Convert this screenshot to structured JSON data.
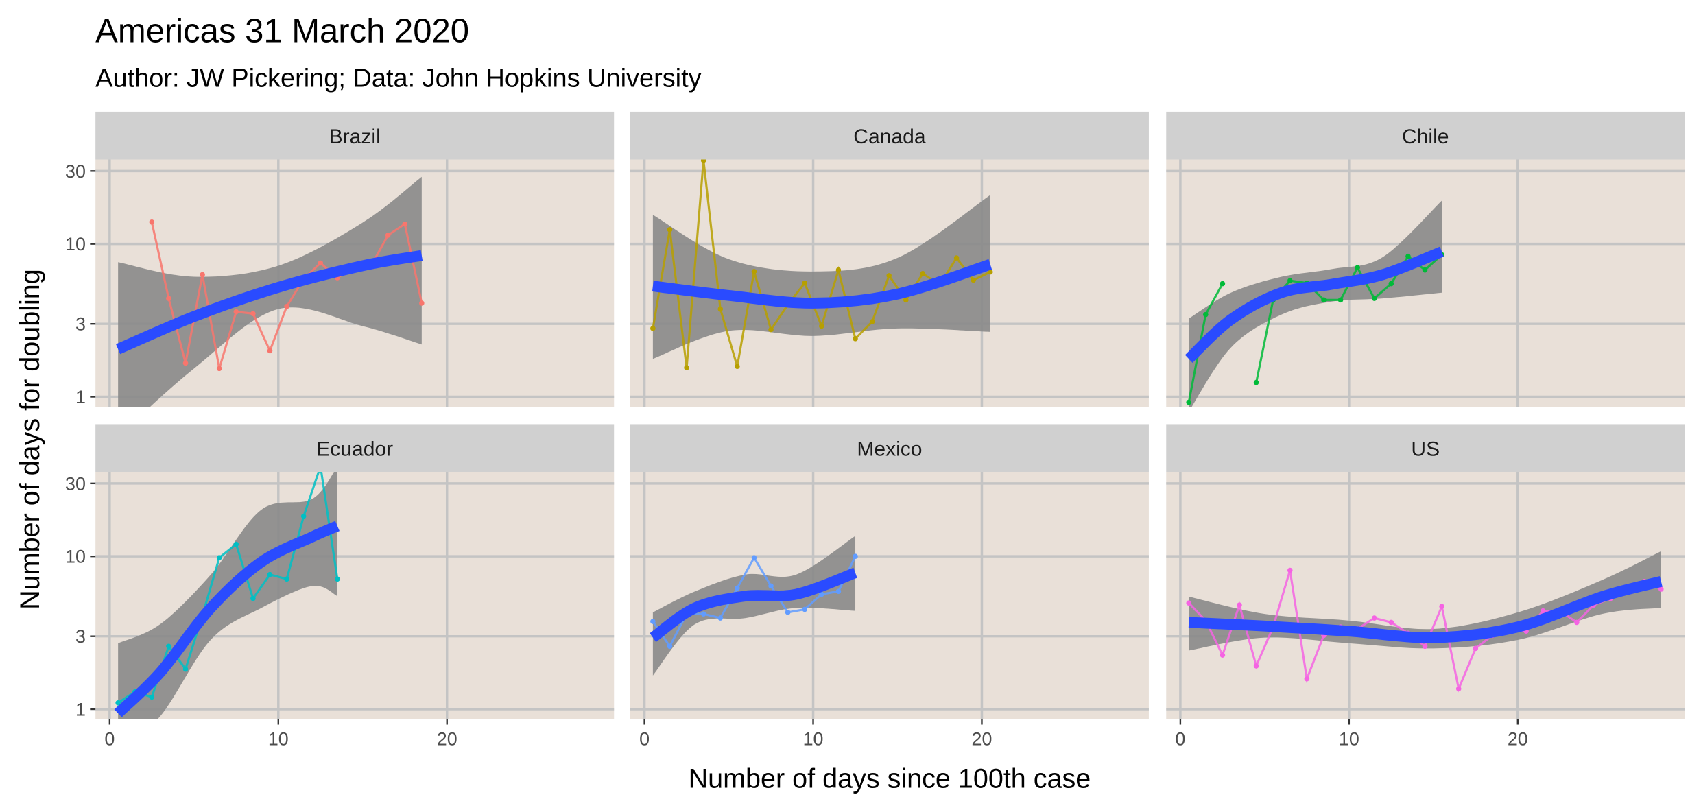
{
  "title": "Americas 31 March 2020",
  "subtitle": "Author: JW Pickering; Data: John Hopkins University",
  "x_label": "Number of days since 100th case",
  "y_label": "Number of days for doubling",
  "chart_data": [
    {
      "type": "line",
      "title": "Brazil",
      "color": "#F8766D",
      "log_y": true,
      "grid": true,
      "xlim": [
        -0.84,
        29.9
      ],
      "ylim": [
        0.86,
        35.7
      ],
      "xticks": [
        0,
        10,
        20
      ],
      "yticks": [
        1,
        3,
        10,
        30
      ],
      "x": [
        2.5,
        3.5,
        4.5,
        5.5,
        6.5,
        7.5,
        8.5,
        9.5,
        10.5,
        11.5,
        12.5,
        13.5,
        14.5,
        15.5,
        16.5,
        17.5,
        18.5
      ],
      "values": [
        13.9,
        4.4,
        1.66,
        6.3,
        1.53,
        3.6,
        3.5,
        2.0,
        3.9,
        5.9,
        7.5,
        6.0,
        7.1,
        7.2,
        11.4,
        13.5,
        4.1
      ],
      "smooth": {
        "color": "#2A4BFF",
        "x": [
          0.5,
          5,
          10,
          15,
          18.5
        ],
        "values": [
          2.05,
          3.35,
          5.2,
          7.2,
          8.4
        ],
        "lower": [
          0.55,
          1.53,
          3.75,
          2.9,
          2.2
        ],
        "upper": [
          7.6,
          6.1,
          7.2,
          13.8,
          27.5
        ]
      }
    },
    {
      "type": "line",
      "title": "Canada",
      "color": "#B79F00",
      "log_y": true,
      "grid": true,
      "xlim": [
        -0.84,
        29.9
      ],
      "ylim": [
        0.86,
        35.7
      ],
      "xticks": [
        0,
        10,
        20
      ],
      "yticks": [
        1,
        3,
        10,
        30
      ],
      "x": [
        0.5,
        1.5,
        2.5,
        3.5,
        4.5,
        5.5,
        6.5,
        7.5,
        8.5,
        9.5,
        10.5,
        11.5,
        12.5,
        13.5,
        14.5,
        15.5,
        16.5,
        17.5,
        18.5,
        19.5,
        20.5
      ],
      "values": [
        2.8,
        12.4,
        1.55,
        35.2,
        3.75,
        1.58,
        6.6,
        2.75,
        4.0,
        5.55,
        2.9,
        6.75,
        2.4,
        3.1,
        6.2,
        4.3,
        6.4,
        5.4,
        8.1,
        5.8,
        6.55
      ],
      "smooth": {
        "color": "#2A4BFF",
        "x": [
          0.5,
          5,
          10,
          15,
          20.5
        ],
        "values": [
          5.3,
          4.6,
          4.1,
          4.7,
          7.35
        ],
        "lower": [
          1.77,
          2.7,
          2.5,
          2.8,
          2.66
        ],
        "upper": [
          15.5,
          7.95,
          6.6,
          8.1,
          20.9
        ]
      }
    },
    {
      "type": "line",
      "title": "Chile",
      "color": "#00BA38",
      "log_y": true,
      "grid": true,
      "xlim": [
        -0.84,
        29.9
      ],
      "ylim": [
        0.86,
        35.7
      ],
      "xticks": [
        0,
        10,
        20
      ],
      "yticks": [
        1,
        3,
        10,
        30
      ],
      "x": [
        0.5,
        1.5,
        2.5,
        3.5,
        4.5,
        5.5,
        6.5,
        7.5,
        8.5,
        9.5,
        10.5,
        11.5,
        12.5,
        13.5,
        14.5,
        15.5
      ],
      "values": [
        0.92,
        3.45,
        5.5,
        null,
        1.24,
        4.3,
        5.75,
        5.55,
        4.3,
        4.3,
        7.0,
        4.4,
        5.5,
        8.3,
        6.75,
        8.5
      ],
      "smooth": {
        "color": "#2A4BFF",
        "x": [
          0.5,
          3,
          6,
          9,
          12,
          15.5
        ],
        "values": [
          1.77,
          3.2,
          4.8,
          5.45,
          6.3,
          8.9
        ],
        "lower": [
          0.8,
          2.1,
          3.45,
          4.2,
          4.4,
          4.8
        ],
        "upper": [
          3.25,
          4.8,
          6.1,
          6.85,
          8.2,
          19.2
        ]
      }
    },
    {
      "type": "line",
      "title": "Ecuador",
      "color": "#00BFC4",
      "log_y": true,
      "grid": true,
      "xlim": [
        -0.84,
        29.9
      ],
      "ylim": [
        0.86,
        35.7
      ],
      "xticks": [
        0,
        10,
        20
      ],
      "yticks": [
        1,
        3,
        10,
        30
      ],
      "x": [
        0.5,
        1.5,
        2.5,
        3.5,
        4.5,
        5.5,
        6.5,
        7.5,
        8.5,
        9.5,
        10.5,
        11.5,
        12.5,
        13.5
      ],
      "values": [
        1.1,
        1.3,
        1.2,
        2.58,
        1.83,
        4.1,
        9.8,
        12.0,
        5.3,
        7.6,
        7.1,
        18.3,
        38.8,
        7.1
      ],
      "smooth": {
        "color": "#2A4BFF",
        "x": [
          0.5,
          3,
          6,
          9,
          12,
          13.5
        ],
        "values": [
          0.94,
          1.74,
          4.6,
          9.2,
          13.4,
          15.8
        ],
        "lower": [
          0.55,
          0.9,
          2.85,
          4.6,
          6.4,
          5.5
        ],
        "upper": [
          2.7,
          3.6,
          7.6,
          20.2,
          23.7,
          38.8
        ]
      }
    },
    {
      "type": "line",
      "title": "Mexico",
      "color": "#619CFF",
      "log_y": true,
      "grid": true,
      "xlim": [
        -0.84,
        29.9
      ],
      "ylim": [
        0.86,
        35.7
      ],
      "xticks": [
        0,
        10,
        20
      ],
      "yticks": [
        1,
        3,
        10,
        30
      ],
      "x": [
        0.5,
        1.5,
        2.5,
        3.5,
        4.5,
        5.5,
        6.5,
        7.5,
        8.5,
        9.5,
        10.5,
        11.5,
        12.5
      ],
      "values": [
        3.75,
        2.58,
        4.2,
        4.2,
        3.95,
        6.2,
        9.8,
        6.4,
        4.3,
        4.5,
        5.65,
        5.9,
        10.0
      ],
      "smooth": {
        "color": "#2A4BFF",
        "x": [
          0.5,
          3,
          6,
          9,
          12.5
        ],
        "values": [
          2.94,
          4.6,
          5.5,
          5.65,
          7.8
        ],
        "lower": [
          1.66,
          3.6,
          3.95,
          4.6,
          4.4
        ],
        "upper": [
          4.3,
          5.9,
          7.6,
          7.6,
          13.6
        ]
      }
    },
    {
      "type": "line",
      "title": "US",
      "color": "#F564E3",
      "log_y": true,
      "grid": true,
      "xlim": [
        -0.84,
        29.9
      ],
      "ylim": [
        0.86,
        35.7
      ],
      "xticks": [
        0,
        10,
        20
      ],
      "yticks": [
        1,
        3,
        10,
        30
      ],
      "x": [
        0.5,
        1.5,
        2.5,
        3.5,
        4.5,
        5.5,
        6.5,
        7.5,
        8.5,
        9.5,
        10.5,
        11.5,
        12.5,
        13.5,
        14.5,
        15.5,
        16.5,
        17.5,
        18.5,
        19.5,
        20.5,
        21.5,
        22.5,
        23.5,
        24.5,
        25.5,
        26.5,
        27.5,
        28.5
      ],
      "values": [
        4.95,
        3.8,
        2.26,
        4.8,
        1.92,
        3.45,
        8.1,
        1.58,
        3.04,
        3.45,
        3.35,
        3.95,
        3.7,
        3.14,
        2.58,
        4.7,
        1.36,
        2.5,
        3.04,
        3.35,
        3.24,
        4.4,
        4.4,
        3.7,
        4.8,
        5.3,
        6.3,
        6.85,
        6.1
      ],
      "smooth": {
        "color": "#2A4BFF",
        "x": [
          0.5,
          5,
          10,
          15,
          20,
          25,
          28.5
        ],
        "values": [
          3.7,
          3.5,
          3.24,
          2.94,
          3.45,
          5.45,
          6.85
        ],
        "lower": [
          2.42,
          2.94,
          2.7,
          2.5,
          2.84,
          4.2,
          4.6
        ],
        "upper": [
          5.45,
          4.2,
          3.8,
          3.35,
          4.3,
          7.0,
          10.8
        ]
      }
    }
  ]
}
